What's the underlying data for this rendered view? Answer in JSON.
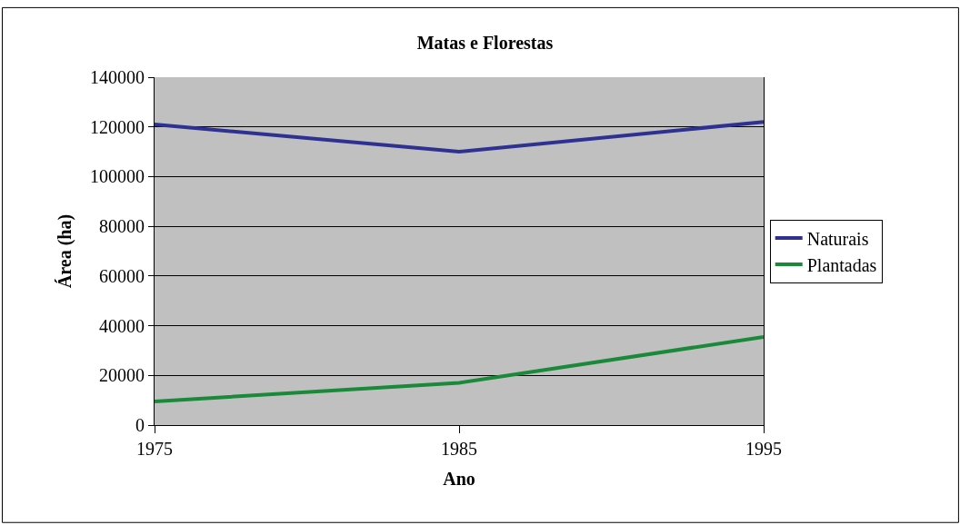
{
  "chart_data": {
    "type": "line",
    "title": "Matas e Florestas",
    "xlabel": "Ano",
    "ylabel": "Área (ha)",
    "x": [
      1975,
      1985,
      1995
    ],
    "xlim": [
      1975,
      1995
    ],
    "xticks": [
      1975,
      1985,
      1995
    ],
    "ylim": [
      0,
      140000
    ],
    "yticks": [
      0,
      20000,
      40000,
      60000,
      80000,
      100000,
      120000,
      140000
    ],
    "series": [
      {
        "name": "Naturais",
        "color": "#2e3192",
        "values": [
          121000,
          110000,
          122000
        ]
      },
      {
        "name": "Plantadas",
        "color": "#1a8a3a",
        "values": [
          9500,
          17000,
          35500
        ]
      }
    ],
    "grid": "y",
    "legend": "right",
    "marker": "none",
    "line_style": "solid"
  }
}
